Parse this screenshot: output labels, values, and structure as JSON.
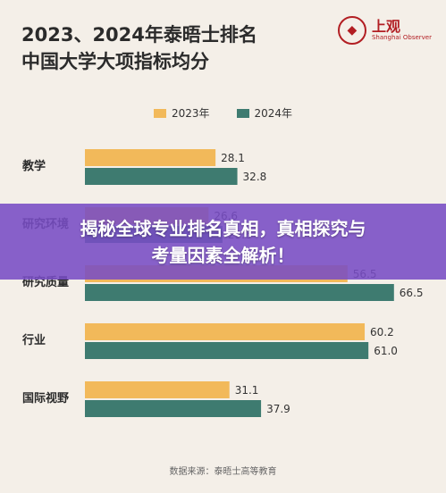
{
  "header": {
    "title_line1": "2023、2024年泰晤士排名",
    "title_line2": "中国大学大项指标均分"
  },
  "logo": {
    "name": "上观",
    "sub": "Shanghai Observer"
  },
  "banner": {
    "line1": "揭秘全球专业排名真相，真相探究与",
    "line2": "考量因素全解析！"
  },
  "source": "数据来源：泰晤士高等教育",
  "colors": {
    "series2023": "#f2b95a",
    "series2024": "#3e7b70",
    "bg": "#f4efe8"
  },
  "chart_data": {
    "type": "bar",
    "orientation": "horizontal",
    "categories": [
      "教学",
      "研究环境",
      "研究质量",
      "行业",
      "国际视野"
    ],
    "series": [
      {
        "name": "2023年",
        "values": [
          28.1,
          26.6,
          56.5,
          60.2,
          31.1
        ]
      },
      {
        "name": "2024年",
        "values": [
          32.8,
          29.6,
          66.5,
          61.0,
          37.9
        ]
      }
    ],
    "value_labels": [
      [
        "28.1",
        "26.6",
        "56.5",
        "60.2",
        "31.1"
      ],
      [
        "32.8",
        "29.6",
        "66.5",
        "61.0",
        "37.9"
      ]
    ],
    "legend": "top-center",
    "grid": false
  }
}
